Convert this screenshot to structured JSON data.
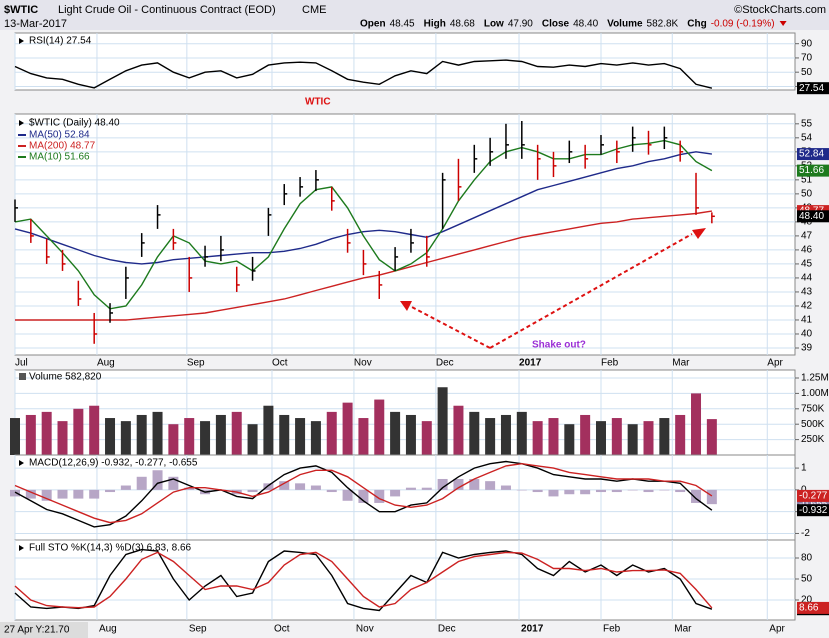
{
  "header": {
    "symbol": "$WTIC",
    "name": "Light Crude Oil - Continuous Contract (EOD)",
    "exchange": "CME",
    "date": "13-Mar-2017",
    "quote": [
      {
        "label": "Open",
        "value": "48.45"
      },
      {
        "label": "High",
        "value": "48.68"
      },
      {
        "label": "Low",
        "value": "47.90"
      },
      {
        "label": "Close",
        "value": "48.40"
      },
      {
        "label": "Volume",
        "value": "582.8K"
      },
      {
        "label": "Chg",
        "value": "-0.09 (-0.19%)"
      }
    ],
    "copyright": "©StockCharts.com",
    "cursor": "27 Apr Y:21.70"
  },
  "chart_data": [
    {
      "type": "line",
      "title": "RSI(14) 27.54",
      "ylim": [
        25,
        105
      ],
      "yticks": [
        30,
        50,
        70,
        90
      ],
      "grid": true,
      "series": [
        {
          "name": "RSI(14)",
          "color": "#000000",
          "last_label": "27.54",
          "values": [
            58,
            48,
            42,
            40,
            33,
            28,
            40,
            52,
            60,
            63,
            50,
            42,
            50,
            52,
            42,
            47,
            60,
            63,
            64,
            63,
            52,
            40,
            36,
            33,
            45,
            52,
            48,
            65,
            60,
            65,
            66,
            67,
            65,
            58,
            57,
            60,
            58,
            62,
            60,
            63,
            60,
            62,
            55,
            33,
            27.54
          ]
        }
      ]
    },
    {
      "type": "ohlc",
      "title": "$WTIC (Daily) 48.40",
      "last_label": "48.40",
      "annotations": [
        "WTIC",
        "Shake out?"
      ],
      "x": [
        0,
        4,
        8,
        12,
        16,
        20,
        24,
        28,
        32,
        36,
        40,
        44,
        48,
        52,
        56,
        60,
        64,
        68,
        72,
        76,
        80,
        84,
        88,
        92,
        96,
        100,
        104,
        108,
        112,
        116,
        120,
        124,
        128,
        132,
        136,
        140,
        144,
        148,
        152,
        156,
        160,
        164,
        168,
        172,
        176
      ],
      "xlim": [
        0,
        197
      ],
      "xticks": [
        {
          "value": 0,
          "label": "Jul"
        },
        {
          "value": 20.7,
          "label": "Aug"
        },
        {
          "value": 43.4,
          "label": "Sep"
        },
        {
          "value": 64.9,
          "label": "Oct"
        },
        {
          "value": 85.6,
          "label": "Nov"
        },
        {
          "value": 106.3,
          "label": "Dec"
        },
        {
          "value": 127.3,
          "label": "2017"
        },
        {
          "value": 148,
          "label": "Feb"
        },
        {
          "value": 166,
          "label": "Mar"
        },
        {
          "value": 190,
          "label": "Apr"
        }
      ],
      "ylim": [
        38.5,
        55.7
      ],
      "yticks": [
        39,
        40,
        41,
        42,
        43,
        44,
        45,
        46,
        47,
        48,
        49,
        50,
        51,
        52,
        53,
        54,
        55
      ],
      "grid": true,
      "up_color": "#000000",
      "down_color": "#cc0000",
      "high": [
        49.6,
        48.2,
        46.8,
        46.0,
        43.8,
        41.5,
        42.2,
        44.8,
        47.2,
        49.2,
        47.5,
        45.5,
        46.3,
        47.0,
        44.8,
        45.5,
        49.0,
        50.7,
        51.2,
        51.7,
        50.5,
        47.5,
        46.0,
        44.5,
        46.2,
        47.5,
        47.0,
        51.5,
        52.5,
        53.5,
        54.0,
        55.0,
        55.2,
        53.5,
        53.0,
        53.8,
        53.5,
        54.2,
        53.8,
        54.8,
        54.5,
        54.8,
        53.8,
        51.5,
        48.68
      ],
      "low": [
        48.0,
        46.5,
        45.0,
        44.5,
        42.0,
        39.3,
        40.8,
        42.5,
        45.5,
        47.5,
        46.0,
        43.0,
        44.8,
        45.2,
        43.0,
        43.8,
        47.0,
        49.2,
        49.8,
        50.2,
        48.8,
        45.8,
        44.2,
        42.5,
        44.5,
        45.8,
        44.8,
        47.5,
        49.5,
        51.5,
        52.0,
        52.5,
        52.5,
        51.0,
        51.2,
        52.2,
        51.8,
        52.8,
        52.2,
        53.0,
        52.8,
        53.2,
        52.3,
        48.5,
        47.9
      ],
      "close": [
        49.0,
        47.0,
        45.5,
        45.0,
        42.5,
        40.0,
        41.5,
        44.0,
        46.5,
        48.5,
        46.5,
        44.0,
        45.5,
        46.0,
        43.5,
        44.5,
        48.5,
        50.0,
        50.5,
        51.0,
        49.5,
        46.5,
        45.0,
        43.5,
        45.5,
        46.5,
        45.5,
        51.0,
        50.5,
        52.5,
        53.0,
        53.5,
        53.5,
        52.5,
        52.0,
        53.0,
        52.5,
        53.5,
        53.0,
        54.0,
        53.5,
        54.0,
        53.0,
        49.0,
        48.4
      ],
      "series": [
        {
          "name": "MA(50) 52.84",
          "color": "#1f2a8a",
          "last_label": "52.84",
          "values": [
            47.5,
            47.2,
            46.8,
            46.4,
            46.0,
            45.6,
            45.3,
            45.1,
            45.0,
            45.1,
            45.3,
            45.4,
            45.5,
            45.6,
            45.7,
            45.8,
            45.8,
            45.9,
            46.1,
            46.4,
            46.8,
            47.1,
            47.3,
            47.4,
            47.3,
            47.1,
            46.9,
            47.3,
            47.8,
            48.3,
            48.8,
            49.3,
            49.8,
            50.3,
            50.6,
            50.9,
            51.2,
            51.5,
            51.8,
            52.0,
            52.3,
            52.5,
            52.8,
            53.0,
            52.84
          ]
        },
        {
          "name": "MA(200) 48.77",
          "color": "#cc2222",
          "last_label": "48.77",
          "values": [
            41.0,
            41.0,
            41.0,
            41.0,
            41.0,
            41.0,
            41.0,
            41.0,
            41.1,
            41.2,
            41.3,
            41.4,
            41.5,
            41.7,
            41.9,
            42.1,
            42.3,
            42.5,
            42.8,
            43.1,
            43.4,
            43.7,
            44.0,
            44.2,
            44.5,
            44.8,
            45.1,
            45.4,
            45.7,
            46.0,
            46.3,
            46.6,
            46.9,
            47.1,
            47.3,
            47.5,
            47.7,
            47.9,
            48.0,
            48.2,
            48.3,
            48.4,
            48.5,
            48.6,
            48.77
          ]
        },
        {
          "name": "MA(10) 51.66",
          "color": "#1d7a1d",
          "last_label": "51.66",
          "values": [
            48.0,
            48.2,
            47.0,
            45.8,
            44.5,
            42.8,
            41.8,
            42.0,
            43.5,
            45.5,
            47.0,
            46.5,
            45.2,
            45.0,
            45.2,
            44.5,
            45.5,
            47.5,
            49.3,
            50.3,
            50.5,
            49.0,
            47.0,
            45.3,
            44.5,
            45.0,
            45.8,
            47.5,
            49.5,
            51.0,
            52.3,
            53.0,
            53.3,
            53.0,
            52.5,
            52.5,
            52.8,
            52.8,
            53.2,
            53.5,
            53.6,
            53.8,
            53.5,
            52.3,
            51.66
          ]
        }
      ]
    },
    {
      "type": "bar",
      "title": "Volume 582,820",
      "ylim": [
        0,
        1380000
      ],
      "yticks": [
        {
          "value": 250000,
          "label": "250K"
        },
        {
          "value": 500000,
          "label": "500K"
        },
        {
          "value": 750000,
          "label": "750K"
        },
        {
          "value": 1000000,
          "label": "1.00M"
        },
        {
          "value": 1250000,
          "label": "1.25M"
        }
      ],
      "grid": true,
      "up_color": "#333333",
      "down_color": "#a3305e",
      "values": [
        600000,
        650000,
        700000,
        550000,
        750000,
        800000,
        600000,
        550000,
        650000,
        700000,
        500000,
        600000,
        550000,
        650000,
        700000,
        500000,
        800000,
        650000,
        600000,
        550000,
        700000,
        850000,
        600000,
        900000,
        700000,
        650000,
        550000,
        1100000,
        800000,
        700000,
        600000,
        650000,
        700000,
        550000,
        600000,
        500000,
        650000,
        550000,
        600000,
        500000,
        550000,
        600000,
        650000,
        1000000,
        582820
      ]
    },
    {
      "type": "line",
      "title": "MACD(12,26,9) -0.932, -0.277, -0.655",
      "ylim": [
        -2.3,
        1.6
      ],
      "yticks": [
        -2,
        -1,
        0,
        1
      ],
      "grid": true,
      "series": [
        {
          "name": "Histogram",
          "kind": "histogram",
          "color": "#b7a6c6",
          "last_label": "-0.655",
          "values": [
            -0.3,
            -0.4,
            -0.5,
            -0.4,
            -0.4,
            -0.4,
            -0.1,
            0.2,
            0.6,
            0.9,
            0.6,
            0.1,
            -0.2,
            0.0,
            -0.2,
            -0.1,
            0.3,
            0.4,
            0.3,
            0.2,
            -0.1,
            -0.5,
            -0.6,
            -0.6,
            -0.3,
            0.1,
            0.1,
            0.5,
            0.5,
            0.5,
            0.4,
            0.2,
            0.0,
            -0.1,
            -0.3,
            -0.2,
            -0.2,
            -0.1,
            -0.1,
            0.0,
            -0.1,
            0.0,
            -0.1,
            -0.6,
            -0.655
          ]
        },
        {
          "name": "MACD",
          "color": "#000000",
          "last_label": "-0.932",
          "values": [
            -0.1,
            -0.5,
            -0.9,
            -1.1,
            -1.4,
            -1.7,
            -1.6,
            -1.2,
            -0.5,
            0.3,
            0.5,
            0.2,
            -0.1,
            0.0,
            -0.3,
            -0.4,
            0.2,
            0.7,
            1.0,
            1.1,
            0.8,
            0.1,
            -0.5,
            -1.0,
            -1.0,
            -0.7,
            -0.6,
            0.1,
            0.6,
            1.0,
            1.2,
            1.3,
            1.2,
            1.0,
            0.7,
            0.6,
            0.5,
            0.5,
            0.4,
            0.5,
            0.4,
            0.4,
            0.3,
            -0.4,
            -0.932
          ]
        },
        {
          "name": "Signal",
          "color": "#cc2222",
          "last_label": "-0.277",
          "values": [
            0.2,
            -0.1,
            -0.4,
            -0.7,
            -1.0,
            -1.3,
            -1.5,
            -1.4,
            -1.1,
            -0.6,
            -0.1,
            0.1,
            0.1,
            0.0,
            -0.1,
            -0.3,
            -0.1,
            0.3,
            0.7,
            0.9,
            0.9,
            0.6,
            0.1,
            -0.4,
            -0.7,
            -0.8,
            -0.7,
            -0.4,
            0.1,
            0.5,
            0.8,
            1.1,
            1.2,
            1.1,
            1.0,
            0.8,
            0.7,
            0.6,
            0.5,
            0.5,
            0.5,
            0.4,
            0.4,
            0.2,
            -0.277
          ]
        }
      ]
    },
    {
      "type": "line",
      "title": "Full STO %K(14,3) %D(3) 6.83, 8.66",
      "ylim": [
        -8.6,
        105.7
      ],
      "yticks": [
        20,
        50,
        80
      ],
      "grid": true,
      "series": [
        {
          "name": "%K",
          "color": "#000000",
          "last_label": "6.83",
          "values": [
            30,
            10,
            8,
            10,
            8,
            12,
            55,
            85,
            92,
            90,
            50,
            20,
            40,
            55,
            25,
            30,
            75,
            90,
            88,
            85,
            55,
            15,
            8,
            5,
            30,
            55,
            45,
            88,
            80,
            85,
            88,
            90,
            85,
            65,
            55,
            75,
            60,
            70,
            55,
            70,
            60,
            65,
            50,
            15,
            6.83
          ]
        },
        {
          "name": "%D",
          "color": "#cc2222",
          "last_label": "8.66",
          "values": [
            40,
            20,
            12,
            10,
            9,
            10,
            25,
            50,
            78,
            88,
            75,
            55,
            35,
            40,
            40,
            35,
            45,
            70,
            85,
            88,
            75,
            50,
            25,
            10,
            15,
            35,
            45,
            60,
            75,
            82,
            85,
            88,
            87,
            78,
            65,
            65,
            62,
            65,
            60,
            62,
            62,
            63,
            58,
            35,
            8.66
          ]
        }
      ]
    }
  ]
}
